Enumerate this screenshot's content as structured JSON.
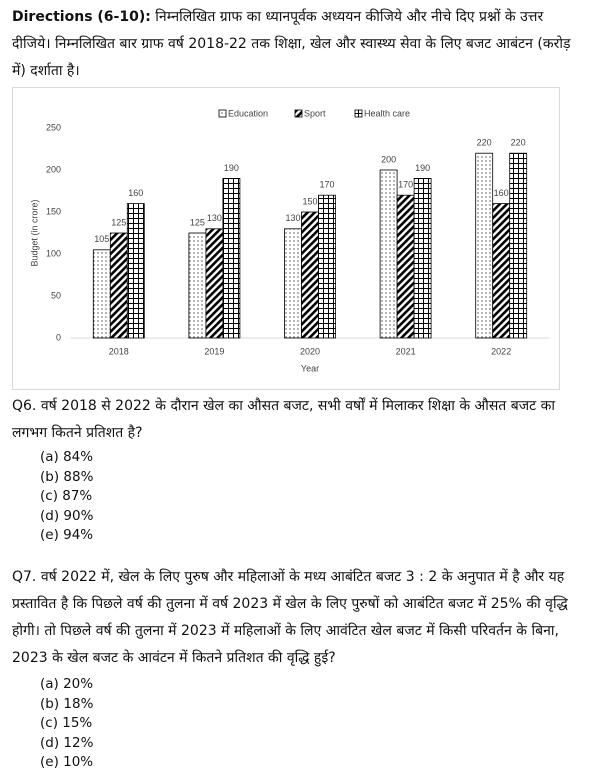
{
  "directions": {
    "label": "Directions (6-10):",
    "text": "निम्नलिखित ग्राफ का ध्यानपूर्वक अध्ययन कीजिये और नीचे दिए प्रश्नों के उत्तर दीजिये। निम्नलिखित बार ग्राफ वर्ष 2018-22 तक शिक्षा, खेल और स्वास्थ्य सेवा के लिए बजट आबंटन (करोड़ में) दर्शाता है।"
  },
  "chart_data": {
    "type": "bar",
    "x_label": "Year",
    "y_label": "Budget (in crore)",
    "categories": [
      "2018",
      "2019",
      "2020",
      "2021",
      "2022"
    ],
    "series": [
      {
        "name": "Education",
        "color": "#000000",
        "pattern": "dots",
        "values": [
          105,
          125,
          130,
          200,
          220
        ]
      },
      {
        "name": "Sport",
        "color": "#000000",
        "pattern": "hatch",
        "values": [
          125,
          130,
          150,
          170,
          160
        ]
      },
      {
        "name": "Health care",
        "color": "#000000",
        "pattern": "grid",
        "values": [
          160,
          190,
          170,
          190,
          220
        ]
      }
    ],
    "ylim": [
      0,
      250
    ],
    "yticks": [
      0,
      50,
      100,
      150,
      200,
      250
    ],
    "grid": false,
    "legend": "top"
  },
  "questions": [
    {
      "label": "Q6.",
      "text": "वर्ष 2018 से 2022 के दौरान खेल का औसत बजट, सभी वर्षों में मिलाकर शिक्षा के औसत बजट का लगभग कितने प्रतिशत है?",
      "options": [
        "(a) 84%",
        "(b) 88%",
        "(c) 87%",
        "(d) 90%",
        "(e) 94%"
      ]
    },
    {
      "label": "Q7.",
      "text": "वर्ष 2022 में, खेल के लिए पुरुष और महिलाओं के मध्य आबंटित बजट 3 : 2 के अनुपात में है और यह प्रस्तावित है कि पिछले वर्ष की तुलना में वर्ष 2023 में खेल के लिए पुरुषों को आबंटित बजट में 25% की वृद्धि होगी। तो पिछले वर्ष की तुलना में 2023 में महिलाओं के लिए आवंटित खेल बजट में किसी परिवर्तन के बिना, 2023 के खेल बजट के आवंटन में कितने प्रतिशत की वृद्धि हुई?",
      "options": [
        "(a) 20%",
        "(b) 18%",
        "(c) 15%",
        "(d) 12%",
        "(e) 10%"
      ]
    }
  ]
}
